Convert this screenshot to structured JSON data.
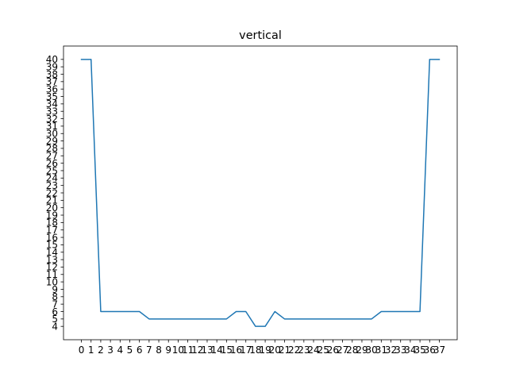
{
  "chart_data": {
    "type": "line",
    "title": "vertical",
    "xlabel": "",
    "ylabel": "",
    "x": [
      0,
      1,
      2,
      3,
      4,
      5,
      6,
      7,
      8,
      9,
      10,
      11,
      12,
      13,
      14,
      15,
      16,
      17,
      18,
      19,
      20,
      21,
      22,
      23,
      24,
      25,
      26,
      27,
      28,
      29,
      30,
      31,
      32,
      33,
      34,
      35,
      36,
      37
    ],
    "series": [
      {
        "name": "",
        "color": "#1f77b4",
        "values": [
          40,
          40,
          6,
          6,
          6,
          6,
          6,
          5,
          5,
          5,
          5,
          5,
          5,
          5,
          5,
          5,
          6,
          6,
          4,
          4,
          6,
          5,
          5,
          5,
          5,
          5,
          5,
          5,
          5,
          5,
          5,
          6,
          6,
          6,
          6,
          6,
          40,
          40
        ]
      }
    ],
    "xlim": [
      -1.85,
      38.85
    ],
    "ylim": [
      2.2,
      41.8
    ],
    "xticks": [
      0,
      1,
      2,
      3,
      4,
      5,
      6,
      7,
      8,
      9,
      10,
      11,
      12,
      13,
      14,
      15,
      16,
      17,
      18,
      19,
      20,
      21,
      22,
      23,
      24,
      25,
      26,
      27,
      28,
      29,
      30,
      31,
      32,
      33,
      34,
      35,
      36,
      37
    ],
    "yticks": [
      4,
      5,
      6,
      7,
      8,
      9,
      10,
      11,
      12,
      13,
      14,
      15,
      16,
      17,
      18,
      19,
      20,
      21,
      22,
      23,
      24,
      25,
      26,
      27,
      28,
      29,
      30,
      31,
      32,
      33,
      34,
      35,
      36,
      37,
      38,
      39,
      40
    ],
    "grid": false,
    "legend": "none"
  }
}
